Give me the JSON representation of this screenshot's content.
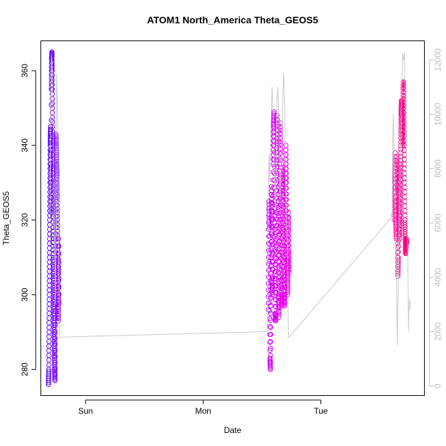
{
  "chart_data": {
    "type": "scatter",
    "title": "ATOM1 North_America Theta_GEOS5",
    "xlabel": "Date",
    "ylabel": "Theta_GEOS5",
    "x_ticks": [
      "Sun",
      "Mon",
      "Tue"
    ],
    "xlim_days": [
      -0.38,
      2.88
    ],
    "ylim": [
      273,
      368
    ],
    "y_ticks": [
      280,
      300,
      320,
      340,
      360
    ],
    "y2_label": "",
    "y2lim": [
      -350,
      12700
    ],
    "y2_ticks": [
      0,
      2000,
      4000,
      6000,
      8000,
      10000,
      12000
    ],
    "y2_color": "#c8c8c8",
    "series": [
      {
        "type": "points",
        "color_start": "#5B00FF",
        "color_end": "#8A00FF",
        "x_range": [
          -0.31,
          -0.12
        ],
        "values": [
          [
            -0.315,
            276
          ],
          [
            -0.312,
            280
          ],
          [
            -0.31,
            290
          ],
          [
            -0.308,
            300
          ],
          [
            -0.306,
            310
          ],
          [
            -0.304,
            320
          ],
          [
            -0.302,
            330
          ],
          [
            -0.3,
            340
          ],
          [
            -0.298,
            345
          ],
          [
            -0.296,
            338
          ],
          [
            -0.294,
            330
          ],
          [
            -0.292,
            322
          ],
          [
            -0.29,
            355
          ],
          [
            -0.288,
            363
          ],
          [
            -0.286,
            365
          ],
          [
            -0.284,
            360
          ],
          [
            -0.282,
            350
          ],
          [
            -0.28,
            340
          ],
          [
            -0.278,
            330
          ],
          [
            -0.276,
            318
          ],
          [
            -0.274,
            310
          ],
          [
            -0.272,
            305
          ],
          [
            -0.27,
            300
          ],
          [
            -0.268,
            295
          ],
          [
            -0.266,
            290
          ],
          [
            -0.264,
            285
          ],
          [
            -0.262,
            280
          ],
          [
            -0.26,
            277
          ],
          [
            -0.258,
            290
          ],
          [
            -0.256,
            305
          ],
          [
            -0.254,
            318
          ],
          [
            -0.252,
            330
          ],
          [
            -0.25,
            343
          ],
          [
            -0.248,
            340
          ],
          [
            -0.246,
            335
          ],
          [
            -0.244,
            332
          ],
          [
            -0.242,
            326
          ],
          [
            -0.24,
            318
          ],
          [
            -0.238,
            310
          ],
          [
            -0.236,
            305
          ],
          [
            -0.234,
            298
          ],
          [
            -0.232,
            293
          ],
          [
            -0.23,
            300
          ],
          [
            -0.228,
            315
          ],
          [
            -0.226,
            298
          ]
        ]
      },
      {
        "type": "points",
        "color_start": "#C800FF",
        "color_end": "#F200E6",
        "x_range": [
          1.55,
          1.79
        ],
        "values": [
          [
            1.553,
            296
          ],
          [
            1.556,
            310
          ],
          [
            1.559,
            325
          ],
          [
            1.562,
            318
          ],
          [
            1.565,
            300
          ],
          [
            1.568,
            283
          ],
          [
            1.571,
            280
          ],
          [
            1.574,
            295
          ],
          [
            1.577,
            312
          ],
          [
            1.58,
            329
          ],
          [
            1.583,
            320
          ],
          [
            1.586,
            305
          ],
          [
            1.589,
            300
          ],
          [
            1.592,
            318
          ],
          [
            1.595,
            335
          ],
          [
            1.598,
            345
          ],
          [
            1.601,
            349
          ],
          [
            1.604,
            340
          ],
          [
            1.607,
            325
          ],
          [
            1.61,
            310
          ],
          [
            1.613,
            295
          ],
          [
            1.616,
            293
          ],
          [
            1.619,
            308
          ],
          [
            1.622,
            322
          ],
          [
            1.625,
            338
          ],
          [
            1.628,
            348
          ],
          [
            1.631,
            340
          ],
          [
            1.634,
            325
          ],
          [
            1.637,
            312
          ],
          [
            1.64,
            300
          ],
          [
            1.643,
            294
          ],
          [
            1.646,
            305
          ],
          [
            1.649,
            320
          ],
          [
            1.652,
            335
          ],
          [
            1.655,
            346
          ],
          [
            1.658,
            338
          ],
          [
            1.661,
            322
          ],
          [
            1.664,
            308
          ],
          [
            1.667,
            297
          ],
          [
            1.67,
            300
          ],
          [
            1.673,
            315
          ],
          [
            1.676,
            327
          ],
          [
            1.679,
            334
          ],
          [
            1.682,
            322
          ],
          [
            1.685,
            310
          ],
          [
            1.688,
            300
          ],
          [
            1.691,
            297
          ],
          [
            1.694,
            305
          ],
          [
            1.697,
            318
          ],
          [
            1.7,
            330
          ],
          [
            1.703,
            340
          ],
          [
            1.706,
            330
          ],
          [
            1.709,
            318
          ],
          [
            1.712,
            310
          ],
          [
            1.715,
            305
          ],
          [
            1.718,
            300
          ],
          [
            1.721,
            310
          ],
          [
            1.724,
            322
          ],
          [
            1.727,
            312
          ],
          [
            1.73,
            306
          ]
        ]
      },
      {
        "type": "points",
        "color_start": "#F21FA8",
        "color_end": "#FF0080",
        "x_range": [
          2.62,
          2.82
        ],
        "values": [
          [
            2.625,
            320
          ],
          [
            2.628,
            330
          ],
          [
            2.631,
            338
          ],
          [
            2.634,
            330
          ],
          [
            2.637,
            320
          ],
          [
            2.64,
            315
          ],
          [
            2.643,
            325
          ],
          [
            2.646,
            337
          ],
          [
            2.649,
            328
          ],
          [
            2.652,
            315
          ],
          [
            2.655,
            305
          ],
          [
            2.658,
            310
          ],
          [
            2.661,
            322
          ],
          [
            2.664,
            335
          ],
          [
            2.667,
            325
          ],
          [
            2.67,
            315
          ],
          [
            2.673,
            322
          ],
          [
            2.676,
            332
          ],
          [
            2.679,
            340
          ],
          [
            2.682,
            348
          ],
          [
            2.685,
            352
          ],
          [
            2.688,
            350
          ],
          [
            2.691,
            345
          ],
          [
            2.694,
            340
          ],
          [
            2.697,
            348
          ],
          [
            2.7,
            355
          ],
          [
            2.703,
            357
          ],
          [
            2.706,
            350
          ],
          [
            2.709,
            340
          ],
          [
            2.712,
            330
          ],
          [
            2.715,
            320
          ],
          [
            2.718,
            315
          ],
          [
            2.721,
            311
          ],
          [
            2.724,
            313
          ],
          [
            2.727,
            315
          ],
          [
            2.73,
            314
          ]
        ]
      },
      {
        "type": "line",
        "axis": "right",
        "color": "#c8c8c8",
        "values": [
          [
            -0.315,
            0
          ],
          [
            -0.31,
            1500
          ],
          [
            -0.305,
            3500
          ],
          [
            -0.3,
            7000
          ],
          [
            -0.295,
            10500
          ],
          [
            -0.29,
            12200
          ],
          [
            -0.285,
            12000
          ],
          [
            -0.28,
            11000
          ],
          [
            -0.275,
            9500
          ],
          [
            -0.27,
            8000
          ],
          [
            -0.265,
            6000
          ],
          [
            -0.26,
            4500
          ],
          [
            -0.255,
            3000
          ],
          [
            -0.25,
            9000
          ],
          [
            -0.245,
            11500
          ],
          [
            -0.24,
            10500
          ],
          [
            -0.235,
            9000
          ],
          [
            -0.23,
            6000
          ],
          [
            -0.225,
            3500
          ],
          [
            -0.22,
            1800
          ],
          [
            -0.215,
            1800
          ],
          [
            1.53,
            2000
          ],
          [
            1.545,
            2000
          ],
          [
            1.55,
            6500
          ],
          [
            1.56,
            8500
          ],
          [
            1.565,
            7500
          ],
          [
            1.575,
            9500
          ],
          [
            1.585,
            11000
          ],
          [
            1.595,
            10000
          ],
          [
            1.605,
            8000
          ],
          [
            1.615,
            6500
          ],
          [
            1.625,
            10500
          ],
          [
            1.635,
            11000
          ],
          [
            1.645,
            9000
          ],
          [
            1.655,
            7000
          ],
          [
            1.665,
            8500
          ],
          [
            1.675,
            10500
          ],
          [
            1.685,
            11500
          ],
          [
            1.695,
            9500
          ],
          [
            1.705,
            6500
          ],
          [
            1.715,
            5000
          ],
          [
            1.725,
            1800
          ],
          [
            1.73,
            1800
          ],
          [
            2.6,
            6200
          ],
          [
            2.605,
            6400
          ],
          [
            2.61,
            8500
          ],
          [
            2.615,
            10000
          ],
          [
            2.62,
            9000
          ],
          [
            2.63,
            7000
          ],
          [
            2.64,
            4500
          ],
          [
            2.65,
            1500
          ],
          [
            2.655,
            3000
          ],
          [
            2.665,
            6000
          ],
          [
            2.675,
            8500
          ],
          [
            2.685,
            10500
          ],
          [
            2.695,
            12200
          ],
          [
            2.705,
            12000
          ],
          [
            2.71,
            12300
          ],
          [
            2.72,
            10000
          ],
          [
            2.73,
            7500
          ],
          [
            2.74,
            4500
          ],
          [
            2.745,
            2000
          ],
          [
            2.75,
            3000
          ],
          [
            2.755,
            3200
          ],
          [
            2.76,
            2800
          ]
        ]
      }
    ]
  }
}
